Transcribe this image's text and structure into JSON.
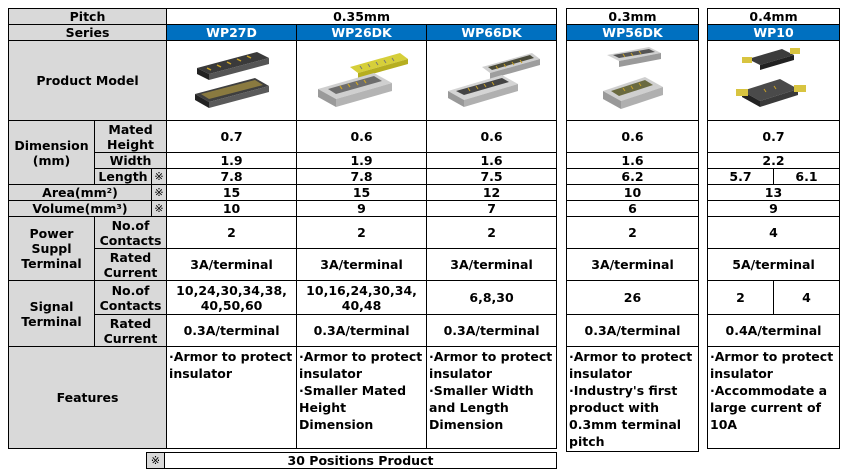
{
  "left": {
    "pitch_label": "Pitch",
    "series_label": "Series",
    "product_model": "Product Model",
    "dimension": "Dimension (mm)",
    "mated_height": "Mated Height",
    "width": "Width",
    "length": "Length",
    "mark": "※",
    "area": "Area(mm²)",
    "volume": "Volume(mm³)",
    "power": "Power Suppl Terminal",
    "signal": "Signal Terminal",
    "contacts": "No.of Contacts",
    "rated": "Rated Current",
    "features": "Features"
  },
  "pitches": {
    "p035": "0.35mm",
    "p03": "0.3mm",
    "p04": "0.4mm"
  },
  "series": [
    "WP27D",
    "WP26DK",
    "WP66DK",
    "WP56DK",
    "WP10"
  ],
  "mated": [
    "0.7",
    "0.6",
    "0.6",
    "0.6",
    "0.7"
  ],
  "width": [
    "1.9",
    "1.9",
    "1.6",
    "1.6",
    "2.2"
  ],
  "length": [
    "7.8",
    "7.8",
    "7.5",
    "6.2",
    "5.7",
    "6.1"
  ],
  "area": [
    "15",
    "15",
    "12",
    "10",
    "13"
  ],
  "volume": [
    "10",
    "9",
    "7",
    "6",
    "9"
  ],
  "power_contacts": [
    "2",
    "2",
    "2",
    "2",
    "4"
  ],
  "power_current": [
    "3A/terminal",
    "3A/terminal",
    "3A/terminal",
    "3A/terminal",
    "5A/terminal"
  ],
  "signal_contacts": [
    "10,24,30,34,38, 40,50,60",
    "10,16,24,30,34, 40,48",
    "6,8,30",
    "26",
    "2",
    "4"
  ],
  "signal_current": [
    "0.3A/terminal",
    "0.3A/terminal",
    "0.3A/terminal",
    "0.3A/terminal",
    "0.4A/terminal"
  ],
  "features": [
    [
      "·Armor to protect insulator"
    ],
    [
      "·Armor to protect insulator",
      "·Smaller Mated Height Dimension"
    ],
    [
      "·Armor to protect insulator",
      "·Smaller Width and Length Dimension"
    ],
    [
      "·Armor to protect insulator",
      "·Industry's first product with 0.3mm terminal pitch"
    ],
    [
      "·Armor to protect insulator",
      "·Accommodate a large current of 10A"
    ]
  ],
  "footnote": {
    "mark": "※",
    "text": "30 Positions Product"
  },
  "colors": {
    "header_blue": "#0070c0",
    "label_gray": "#d9d9d9"
  }
}
